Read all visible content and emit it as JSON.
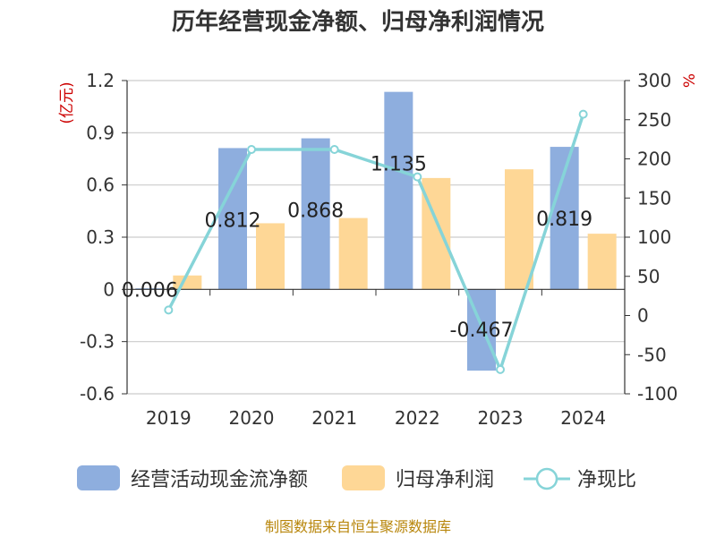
{
  "chart_data": {
    "type": "bar",
    "title": "历年经营现金净额、归母净利润情况",
    "categories": [
      "2019",
      "2020",
      "2021",
      "2022",
      "2023",
      "2024"
    ],
    "left_axis": {
      "unit": "(亿元)",
      "ylim": [
        -0.6,
        1.2
      ],
      "ticks": [
        -0.6,
        -0.3,
        0,
        0.3,
        0.6,
        0.9,
        1.2
      ],
      "tick_labels": [
        "-0.6",
        "-0.3",
        "0",
        "0.3",
        "0.6",
        "0.9",
        "1.2"
      ]
    },
    "right_axis": {
      "unit": "%",
      "ylim": [
        -100,
        300
      ],
      "ticks": [
        -100,
        -50,
        0,
        50,
        100,
        150,
        200,
        250,
        300
      ],
      "tick_labels": [
        "-100",
        "-50",
        "0",
        "50",
        "100",
        "150",
        "200",
        "250",
        "300"
      ]
    },
    "series": [
      {
        "name": "经营活动现金流净额",
        "kind": "bar",
        "axis": "left",
        "color": "#8eaede",
        "values": [
          0.006,
          0.812,
          0.868,
          1.135,
          -0.467,
          0.819
        ],
        "labels": [
          "0.006",
          "0.812",
          "0.868",
          "1.135",
          "-0.467",
          "0.819"
        ]
      },
      {
        "name": "归母净利润",
        "kind": "bar",
        "axis": "left",
        "color": "#fed796",
        "values": [
          0.08,
          0.38,
          0.41,
          0.64,
          0.69,
          0.32
        ]
      },
      {
        "name": "净现比",
        "kind": "line",
        "axis": "right",
        "color": "#86d4d8",
        "values": [
          7,
          212,
          212,
          177,
          -69,
          257
        ]
      }
    ],
    "grid": true,
    "legend_position": "bottom"
  },
  "source": "制图数据来自恒生聚源数据库"
}
